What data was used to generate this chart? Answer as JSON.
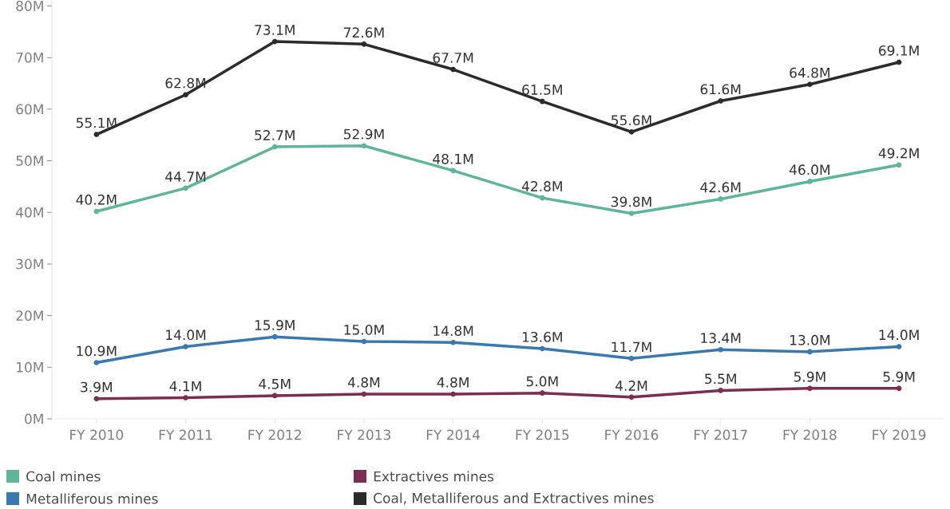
{
  "chart_data": {
    "type": "line",
    "categories": [
      "FY 2010",
      "FY 2011",
      "FY 2012",
      "FY 2013",
      "FY 2014",
      "FY 2015",
      "FY 2016",
      "FY 2017",
      "FY 2018",
      "FY 2019"
    ],
    "series": [
      {
        "name": "Coal mines",
        "color": "#5fb49c",
        "values": [
          40.2,
          44.7,
          52.7,
          52.9,
          48.1,
          42.8,
          39.8,
          42.6,
          46.0,
          49.2
        ],
        "value_labels": [
          "40.2M",
          "44.7M",
          "52.7M",
          "52.9M",
          "48.1M",
          "42.8M",
          "39.8M",
          "42.6M",
          "46.0M",
          "49.2M"
        ]
      },
      {
        "name": "Metalliferous mines",
        "color": "#3a78b0",
        "values": [
          10.9,
          14.0,
          15.9,
          15.0,
          14.8,
          13.6,
          11.7,
          13.4,
          13.0,
          14.0
        ],
        "value_labels": [
          "10.9M",
          "14.0M",
          "15.9M",
          "15.0M",
          "14.8M",
          "13.6M",
          "11.7M",
          "13.4M",
          "13.0M",
          "14.0M"
        ]
      },
      {
        "name": "Extractives mines",
        "color": "#7b2d52",
        "values": [
          3.9,
          4.1,
          4.5,
          4.8,
          4.8,
          5.0,
          4.2,
          5.5,
          5.9,
          5.9
        ],
        "value_labels": [
          "3.9M",
          "4.1M",
          "4.5M",
          "4.8M",
          "4.8M",
          "5.0M",
          "4.2M",
          "5.5M",
          "5.9M",
          "5.9M"
        ]
      },
      {
        "name": "Coal, Metalliferous and Extractives mines",
        "color": "#2b2b2b",
        "values": [
          55.1,
          62.8,
          73.1,
          72.6,
          67.7,
          61.5,
          55.6,
          61.6,
          64.8,
          69.1
        ],
        "value_labels": [
          "55.1M",
          "62.8M",
          "73.1M",
          "72.6M",
          "67.7M",
          "61.5M",
          "55.6M",
          "61.6M",
          "64.8M",
          "69.1M"
        ]
      }
    ],
    "ylim": [
      0,
      81
    ],
    "yticks": [
      {
        "value": 0,
        "label": "0M"
      },
      {
        "value": 10,
        "label": "10M"
      },
      {
        "value": 20,
        "label": "20M"
      },
      {
        "value": 30,
        "label": "30M"
      },
      {
        "value": 40,
        "label": "40M"
      },
      {
        "value": 50,
        "label": "50M"
      },
      {
        "value": 60,
        "label": "60M"
      },
      {
        "value": 70,
        "label": "70M"
      },
      {
        "value": 80,
        "label": "80M"
      }
    ],
    "grid": false,
    "legend": "bottom",
    "marker": "circle",
    "line_style": "solid"
  }
}
